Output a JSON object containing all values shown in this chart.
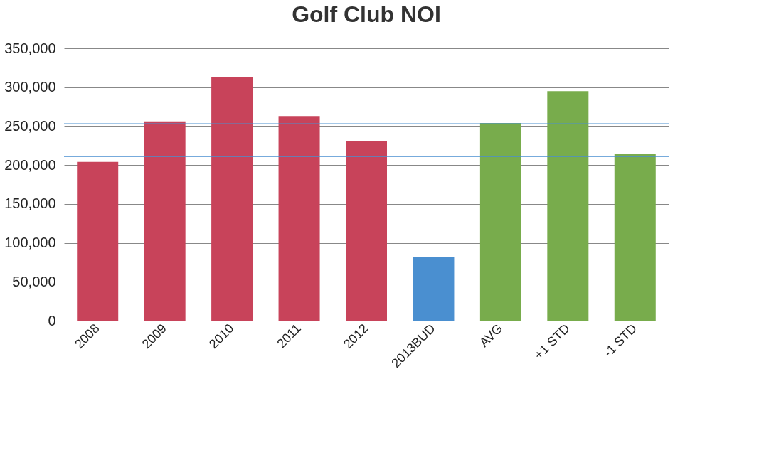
{
  "chart_data": {
    "type": "bar",
    "title": "Golf Club NOI",
    "categories": [
      "2008",
      "2009",
      "2010",
      "2011",
      "2012",
      "2013BUD",
      "AVG",
      "+1 STD",
      "-1 STD"
    ],
    "values": [
      204000,
      256000,
      313000,
      263000,
      231000,
      82000,
      254000,
      295000,
      214000
    ],
    "colors": [
      "#c8435a",
      "#c8435a",
      "#c8435a",
      "#c8435a",
      "#c8435a",
      "#4a8fd0",
      "#78ac4c",
      "#78ac4c",
      "#78ac4c"
    ],
    "ylim": [
      0,
      350000
    ],
    "yticks": [
      0,
      {
        "value": 50000,
        "label": "50,000"
      },
      {
        "value": 100000,
        "label": "100,000"
      },
      {
        "value": 150000,
        "label": "150,000"
      },
      {
        "value": 200000,
        "label": "200,000"
      },
      {
        "value": 250000,
        "label": "250,000"
      },
      {
        "value": 300000,
        "label": "300,000"
      },
      {
        "value": 350000,
        "label": "350,000"
      }
    ],
    "grid": "y",
    "ref_lines": [
      {
        "axis": "y",
        "value": 253000,
        "color": "#4a8fd0"
      },
      {
        "axis": "y",
        "value": 211000,
        "color": "#4a8fd0"
      }
    ]
  }
}
